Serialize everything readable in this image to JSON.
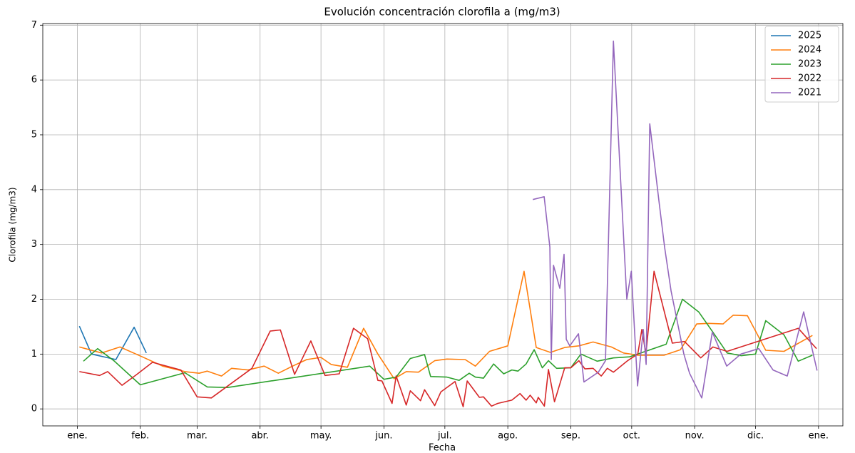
{
  "chart_data": {
    "type": "line",
    "title": "Evolución concentración clorofila a (mg/m3)",
    "x_label": "Fecha",
    "y_label": "Clorofila (mg/m3)",
    "xlim": [
      -17,
      377
    ],
    "ylim": [
      -0.31,
      7.03
    ],
    "xticks": [
      {
        "value": 0,
        "label": "ene."
      },
      {
        "value": 31,
        "label": "feb."
      },
      {
        "value": 59,
        "label": "mar."
      },
      {
        "value": 90,
        "label": "abr."
      },
      {
        "value": 120,
        "label": "may."
      },
      {
        "value": 151,
        "label": "jun."
      },
      {
        "value": 181,
        "label": "jul."
      },
      {
        "value": 212,
        "label": "ago."
      },
      {
        "value": 243,
        "label": "sep."
      },
      {
        "value": 273,
        "label": "oct."
      },
      {
        "value": 304,
        "label": "nov."
      },
      {
        "value": 334,
        "label": "dic."
      },
      {
        "value": 365,
        "label": "ene."
      }
    ],
    "yticks": [
      0,
      1,
      2,
      3,
      4,
      5,
      6,
      7
    ],
    "grid": true,
    "legend": "upper right",
    "series": [
      {
        "name": "2025",
        "color": "#1f77b4",
        "x": [
          1,
          7,
          19,
          28,
          34
        ],
        "values": [
          1.51,
          1.0,
          0.9,
          1.49,
          1.02
        ]
      },
      {
        "name": "2024",
        "color": "#ff7f0e",
        "x": [
          1,
          12,
          21,
          32,
          42,
          53,
          60,
          64,
          71,
          76,
          84,
          92,
          99,
          106,
          113,
          120,
          125,
          133,
          141,
          148,
          156,
          162,
          168,
          176,
          182,
          191,
          196,
          203,
          212,
          220,
          226,
          233,
          240,
          247,
          254,
          263,
          269,
          276,
          289,
          297,
          305,
          311,
          318,
          323,
          330,
          339,
          348,
          362
        ],
        "values": [
          1.13,
          1.02,
          1.13,
          0.95,
          0.78,
          0.68,
          0.65,
          0.69,
          0.6,
          0.74,
          0.71,
          0.78,
          0.65,
          0.78,
          0.9,
          0.94,
          0.81,
          0.76,
          1.47,
          1.0,
          0.55,
          0.68,
          0.67,
          0.88,
          0.91,
          0.9,
          0.78,
          1.05,
          1.15,
          2.51,
          1.12,
          1.03,
          1.12,
          1.15,
          1.22,
          1.13,
          1.02,
          0.98,
          0.98,
          1.08,
          1.55,
          1.56,
          1.55,
          1.71,
          1.7,
          1.07,
          1.05,
          1.34
        ]
      },
      {
        "name": "2023",
        "color": "#2ca02c",
        "x": [
          3,
          10,
          18,
          31,
          53,
          64,
          74,
          144,
          151,
          157,
          164,
          171,
          174,
          182,
          188,
          193,
          196,
          200,
          205,
          210,
          214,
          217,
          221,
          225,
          229,
          232,
          236,
          243,
          248,
          256,
          264,
          272,
          290,
          298,
          306,
          313,
          320,
          327,
          334,
          339,
          348,
          355,
          362
        ],
        "values": [
          0.87,
          1.1,
          0.88,
          0.44,
          0.66,
          0.4,
          0.39,
          0.78,
          0.54,
          0.58,
          0.92,
          0.99,
          0.59,
          0.58,
          0.52,
          0.65,
          0.58,
          0.56,
          0.82,
          0.64,
          0.71,
          0.69,
          0.82,
          1.08,
          0.75,
          0.88,
          0.74,
          0.75,
          1.0,
          0.87,
          0.93,
          0.95,
          1.18,
          2.0,
          1.77,
          1.4,
          1.02,
          0.97,
          1.0,
          1.61,
          1.35,
          0.87,
          0.98
        ]
      },
      {
        "name": "2022",
        "color": "#d62728",
        "x": [
          1,
          11,
          15,
          22,
          29,
          37,
          51,
          59,
          66,
          86,
          95,
          100,
          107,
          115,
          122,
          129,
          136,
          143,
          148,
          150,
          155,
          157,
          162,
          164,
          169,
          171,
          176,
          179,
          186,
          190,
          192,
          198,
          200,
          204,
          207,
          214,
          218,
          221,
          223,
          226,
          227,
          230,
          232,
          235,
          240,
          243,
          247,
          250,
          254,
          258,
          261,
          264,
          271,
          276,
          278,
          280,
          284,
          293,
          299,
          307,
          313,
          320,
          355,
          364
        ],
        "values": [
          0.68,
          0.61,
          0.68,
          0.43,
          0.62,
          0.85,
          0.71,
          0.22,
          0.2,
          0.74,
          1.42,
          1.44,
          0.63,
          1.24,
          0.61,
          0.64,
          1.47,
          1.28,
          0.52,
          0.51,
          0.1,
          0.6,
          0.07,
          0.33,
          0.15,
          0.35,
          0.06,
          0.31,
          0.5,
          0.04,
          0.51,
          0.21,
          0.22,
          0.05,
          0.1,
          0.16,
          0.28,
          0.16,
          0.25,
          0.11,
          0.21,
          0.05,
          0.72,
          0.13,
          0.75,
          0.75,
          0.88,
          0.73,
          0.74,
          0.6,
          0.74,
          0.67,
          0.88,
          1.0,
          1.45,
          1.0,
          2.51,
          1.2,
          1.23,
          0.93,
          1.13,
          1.05,
          1.47,
          1.1
        ]
      },
      {
        "name": "2021",
        "color": "#9467bd",
        "x": [
          224.3,
          229.9,
          232.7,
          233.4,
          234.5,
          237.6,
          239.7,
          240.8,
          242.5,
          246.8,
          249.5,
          256.6,
          260.1,
          264,
          270.6,
          272.8,
          275.9,
          278.7,
          280.1,
          281.9,
          286.4,
          289.2,
          292.4,
          298.7,
          301.5,
          307.5,
          312.7,
          319.8,
          326.8,
          335.6,
          342.6,
          349.6,
          357.7,
          364.3
        ],
        "values": [
          3.82,
          3.87,
          2.95,
          0.9,
          2.62,
          2.2,
          2.82,
          1.27,
          1.15,
          1.37,
          0.49,
          0.67,
          0.88,
          6.71,
          2.0,
          2.51,
          0.42,
          1.45,
          0.81,
          5.2,
          3.8,
          2.95,
          2.15,
          1.0,
          0.65,
          0.2,
          1.4,
          0.78,
          1.0,
          1.1,
          0.71,
          0.6,
          1.77,
          0.7
        ]
      }
    ]
  }
}
